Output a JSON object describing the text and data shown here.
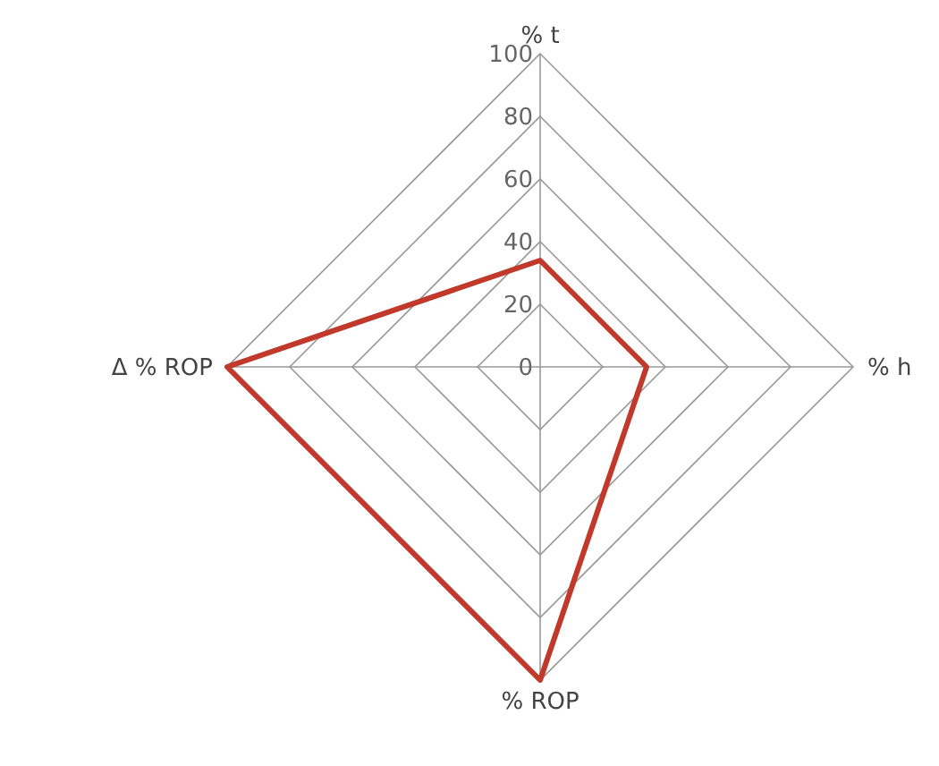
{
  "chart_data": {
    "type": "radar",
    "categories": [
      "% t",
      "% h",
      "% ROP",
      "Δ % ROP"
    ],
    "series": [
      {
        "color": "#c0392b",
        "values": [
          34,
          34,
          100,
          100
        ]
      }
    ],
    "ylim": [
      0,
      100
    ],
    "yticks": [
      0,
      20,
      40,
      60,
      80,
      100
    ],
    "grid": true,
    "marker": "none"
  }
}
